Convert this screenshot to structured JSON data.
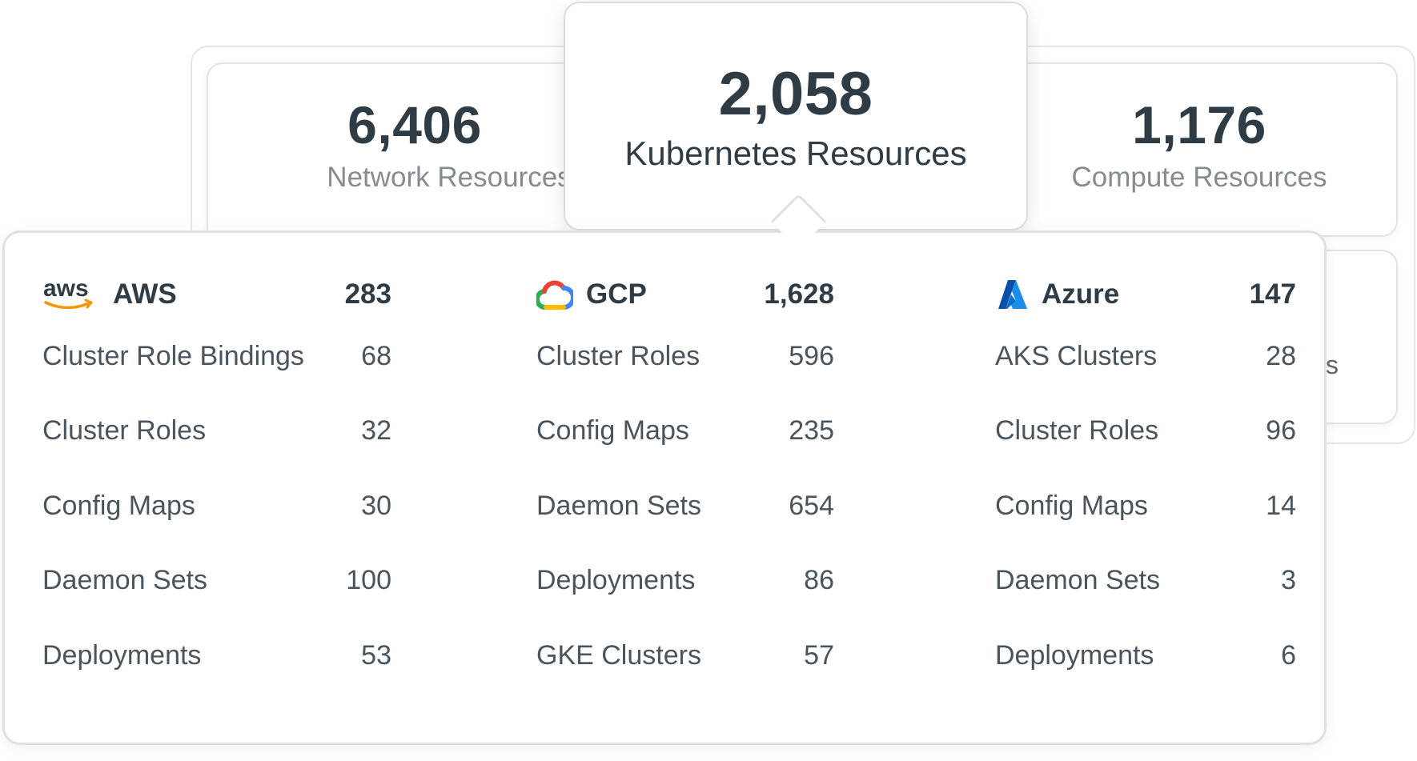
{
  "cards": {
    "network": {
      "value": "6,406",
      "label": "Network Resources"
    },
    "kubernetes": {
      "value": "2,058",
      "label": "Kubernetes Resources"
    },
    "compute": {
      "value": "1,176",
      "label": "Compute Resources"
    },
    "peek_text": "s"
  },
  "providers": [
    {
      "name": "AWS",
      "logo_text": "aws",
      "icon": "aws-logo",
      "total": "283",
      "items": [
        {
          "label": "Cluster Role Bindings",
          "value": "68"
        },
        {
          "label": "Cluster Roles",
          "value": "32"
        },
        {
          "label": "Config Maps",
          "value": "30"
        },
        {
          "label": "Daemon Sets",
          "value": "100"
        },
        {
          "label": "Deployments",
          "value": "53"
        }
      ]
    },
    {
      "name": "GCP",
      "icon": "gcp-cloud-logo",
      "total": "1,628",
      "items": [
        {
          "label": "Cluster Roles",
          "value": "596"
        },
        {
          "label": "Config Maps",
          "value": "235"
        },
        {
          "label": "Daemon Sets",
          "value": "654"
        },
        {
          "label": "Deployments",
          "value": "86"
        },
        {
          "label": "GKE Clusters",
          "value": "57"
        }
      ]
    },
    {
      "name": "Azure",
      "icon": "azure-logo",
      "total": "147",
      "items": [
        {
          "label": "AKS Clusters",
          "value": "28"
        },
        {
          "label": "Cluster Roles",
          "value": "96"
        },
        {
          "label": "Config Maps",
          "value": "14"
        },
        {
          "label": "Daemon Sets",
          "value": "3"
        },
        {
          "label": "Deployments",
          "value": "6"
        }
      ]
    }
  ],
  "colors": {
    "text_dark": "#2f3b45",
    "text_muted": "#858b90",
    "aws_orange": "#f79400",
    "azure_blue": "#0a6fd1"
  }
}
